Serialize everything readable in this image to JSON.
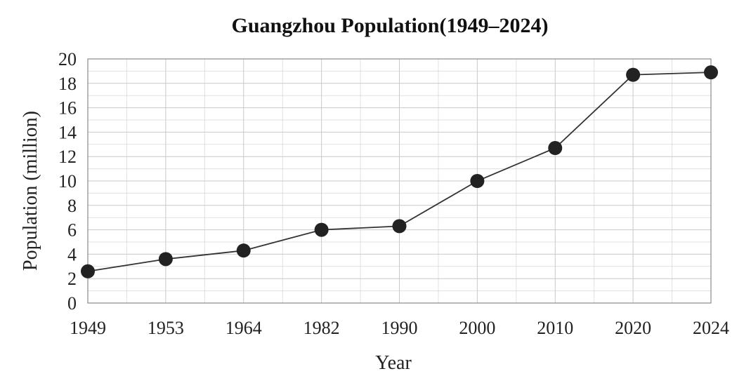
{
  "chart_data": {
    "type": "line",
    "title": "Guangzhou Population(1949–2024)",
    "xlabel": "Year",
    "ylabel": "Population (million)",
    "categories": [
      "1949",
      "1953",
      "1964",
      "1982",
      "1990",
      "2000",
      "2010",
      "2020",
      "2024"
    ],
    "series": [
      {
        "values": [
          2.6,
          3.6,
          4.3,
          6.0,
          6.3,
          10.0,
          12.7,
          18.7,
          18.9
        ]
      }
    ],
    "ylim": [
      0,
      20
    ],
    "yticks": [
      "0",
      "2",
      "4",
      "6",
      "8",
      "10",
      "12",
      "14",
      "16",
      "18",
      "20"
    ],
    "grid": true,
    "legend": "none",
    "colors": {
      "line": "#333333",
      "marker": "#222222",
      "grid": "#c9c9c9"
    }
  }
}
